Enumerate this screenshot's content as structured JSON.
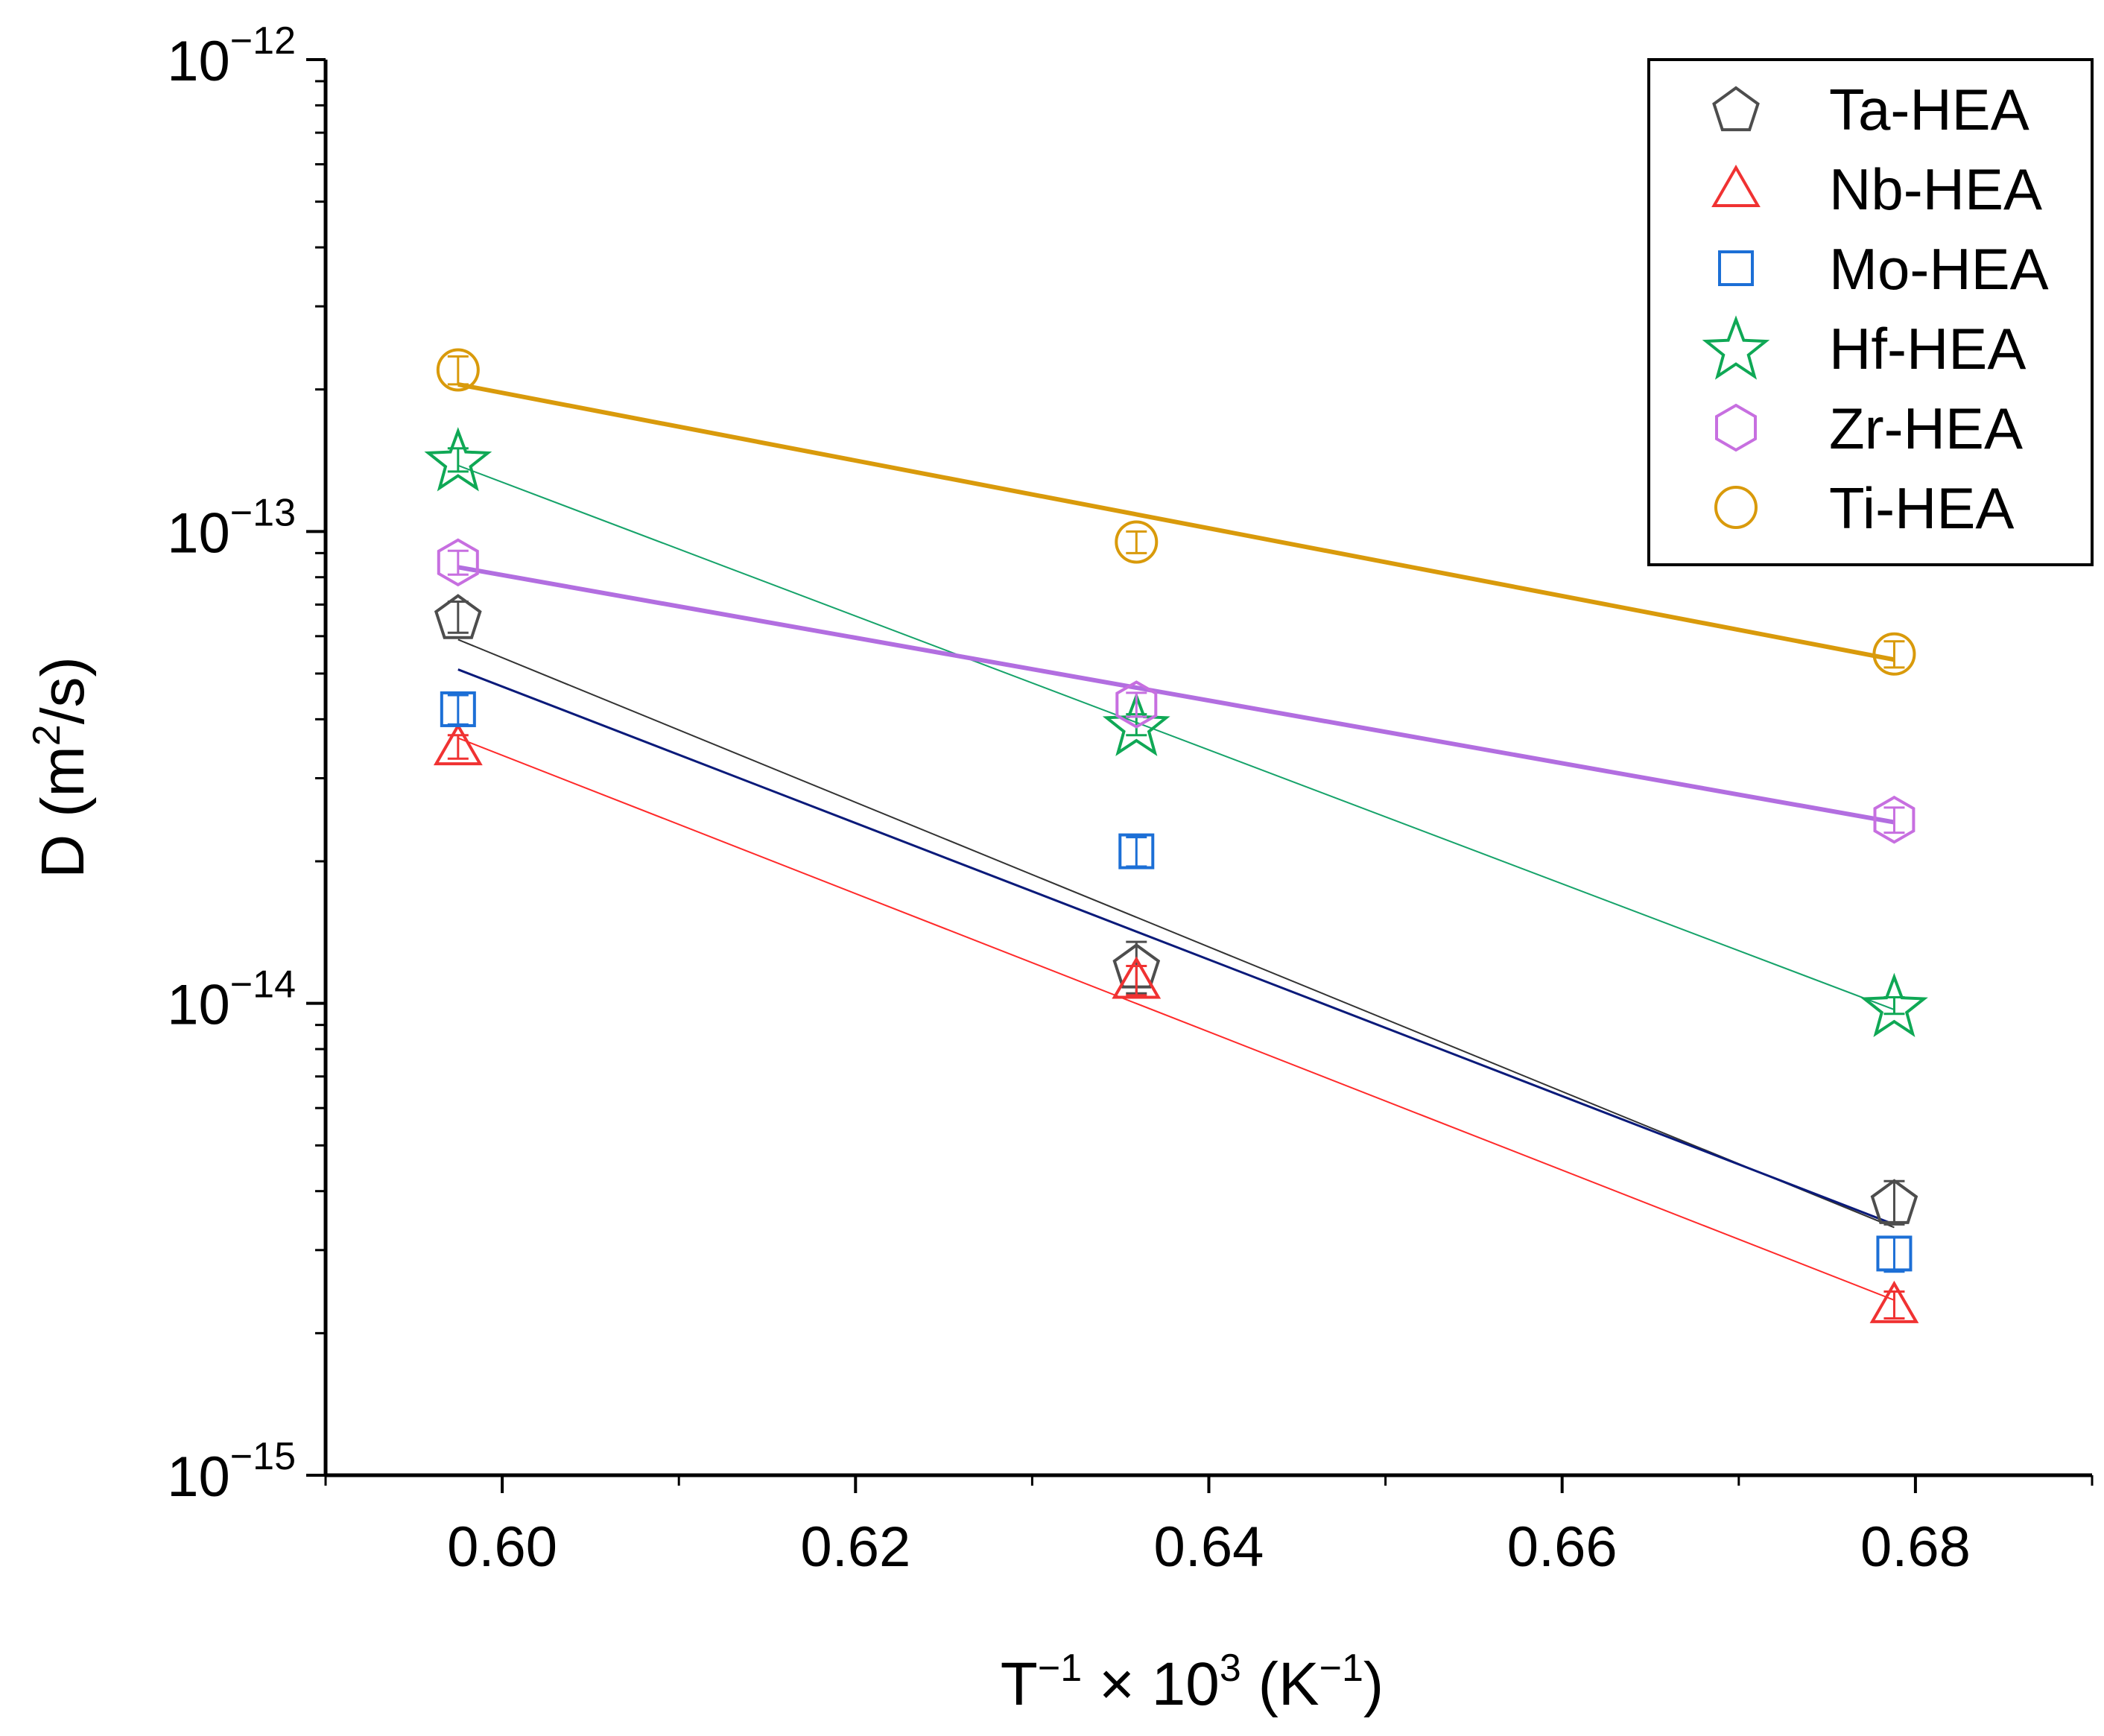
{
  "chart_data": {
    "type": "scatter",
    "xlabel": {
      "base": "T",
      "sup1": "−1",
      "mid": " × 10",
      "sup2": "3",
      "unit_open": " (K",
      "sup3": "−1",
      "unit_close": ")"
    },
    "ylabel": {
      "pre": "D (m",
      "sup": "2",
      "post": "/s)"
    },
    "x_range": [
      0.59,
      0.69
    ],
    "y_range": [
      1e-15,
      1e-12
    ],
    "y_scale": "log",
    "x_ticks": [
      {
        "value": 0.6,
        "label": "0.60"
      },
      {
        "value": 0.62,
        "label": "0.62"
      },
      {
        "value": 0.64,
        "label": "0.64"
      },
      {
        "value": 0.66,
        "label": "0.66"
      },
      {
        "value": 0.68,
        "label": "0.68"
      }
    ],
    "y_ticks": [
      {
        "value": 1e-12,
        "base": "10",
        "exp": "−12"
      },
      {
        "value": 1e-13,
        "base": "10",
        "exp": "−13"
      },
      {
        "value": 1e-14,
        "base": "10",
        "exp": "−14"
      },
      {
        "value": 1e-15,
        "base": "10",
        "exp": "−15"
      }
    ],
    "legend_position": "top-right",
    "grid": false,
    "x": [
      0.5975,
      0.6359,
      0.6788
    ],
    "series": [
      {
        "name": "Ta-HEA",
        "marker": "pentagon",
        "color": "#4d4d4d",
        "line_color": "#333333",
        "line_width": 2,
        "values": [
          6.6e-14,
          1.2e-14,
          3.8e-15
        ],
        "error": [
          5e-15,
          1.5e-15,
          4e-16
        ],
        "fit": [
          5.9e-14,
          3.35e-15
        ]
      },
      {
        "name": "Nb-HEA",
        "marker": "triangle",
        "color": "#f03232",
        "line_color": "#ff2a2a",
        "line_width": 2,
        "values": [
          3.5e-14,
          1.12e-14,
          2.3e-15
        ],
        "error": [
          2e-15,
          8e-16,
          1.5e-16
        ],
        "fit": [
          3.65e-14,
          2.35e-15
        ]
      },
      {
        "name": "Mo-HEA",
        "marker": "square",
        "color": "#1c6fd6",
        "line_color": "#0a1a7a",
        "line_width": 3,
        "values": [
          4.2e-14,
          2.1e-14,
          2.95e-15
        ],
        "error": [
          3e-15,
          1.5e-15,
          2.5e-16
        ],
        "fit": [
          5.1e-14,
          3.4e-15
        ]
      },
      {
        "name": "Hf-HEA",
        "marker": "star",
        "color": "#0fa855",
        "line_color": "#16a36a",
        "line_width": 2,
        "values": [
          1.42e-13,
          3.9e-14,
          9.9e-15
        ],
        "error": [
          8e-15,
          2e-15,
          4e-16
        ],
        "fit": [
          1.38e-13,
          9.7e-15
        ]
      },
      {
        "name": "Zr-HEA",
        "marker": "hexagon",
        "color": "#c76fe0",
        "line_color": "#b26ee0",
        "line_width": 6,
        "values": [
          8.6e-14,
          4.3e-14,
          2.45e-14
        ],
        "error": [
          5e-15,
          2.5e-15,
          1.5e-15
        ],
        "fit": [
          8.4e-14,
          2.42e-14
        ]
      },
      {
        "name": "Ti-HEA",
        "marker": "circle",
        "color": "#d99a0b",
        "line_color": "#d99a0b",
        "line_width": 6,
        "values": [
          2.2e-13,
          9.5e-14,
          5.5e-14
        ],
        "error": [
          1.5e-14,
          5e-15,
          3.5e-15
        ],
        "fit": [
          2.05e-13,
          5.35e-14
        ]
      }
    ]
  }
}
